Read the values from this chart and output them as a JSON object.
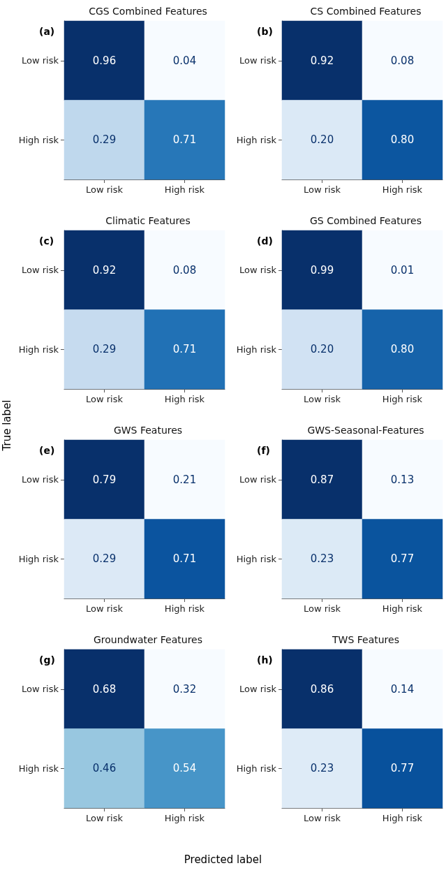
{
  "chart_data": [
    {
      "type": "heatmap",
      "title": "CGS Combined Features",
      "annotations": [
        "(a)"
      ],
      "categories": [
        "Low risk",
        "High risk"
      ],
      "y_categories": [
        "Low risk",
        "High risk"
      ],
      "cells": [
        [
          0.96,
          0.04
        ],
        [
          0.29,
          0.71
        ]
      ],
      "cell_labels": [
        [
          "0.96",
          "0.04"
        ],
        [
          "0.29",
          "0.71"
        ]
      ]
    },
    {
      "type": "heatmap",
      "title": "CS Combined Features",
      "annotations": [
        "(b)"
      ],
      "categories": [
        "Low risk",
        "High risk"
      ],
      "y_categories": [
        "Low risk",
        "High risk"
      ],
      "cells": [
        [
          0.92,
          0.08
        ],
        [
          0.2,
          0.8
        ]
      ],
      "cell_labels": [
        [
          "0.92",
          "0.08"
        ],
        [
          "0.20",
          "0.80"
        ]
      ]
    },
    {
      "type": "heatmap",
      "title": "Climatic Features",
      "annotations": [
        "(c)"
      ],
      "categories": [
        "Low risk",
        "High risk"
      ],
      "y_categories": [
        "Low risk",
        "High risk"
      ],
      "cells": [
        [
          0.92,
          0.08
        ],
        [
          0.29,
          0.71
        ]
      ],
      "cell_labels": [
        [
          "0.92",
          "0.08"
        ],
        [
          "0.29",
          "0.71"
        ]
      ]
    },
    {
      "type": "heatmap",
      "title": "GS Combined Features",
      "annotations": [
        "(d)"
      ],
      "categories": [
        "Low risk",
        "High risk"
      ],
      "y_categories": [
        "Low risk",
        "High risk"
      ],
      "cells": [
        [
          0.99,
          0.01
        ],
        [
          0.2,
          0.8
        ]
      ],
      "cell_labels": [
        [
          "0.99",
          "0.01"
        ],
        [
          "0.20",
          "0.80"
        ]
      ]
    },
    {
      "type": "heatmap",
      "title": "GWS Features",
      "annotations": [
        "(e)"
      ],
      "ylabel": "True label",
      "categories": [
        "Low risk",
        "High risk"
      ],
      "y_categories": [
        "Low risk",
        "High risk"
      ],
      "cells": [
        [
          0.79,
          0.21
        ],
        [
          0.29,
          0.71
        ]
      ],
      "cell_labels": [
        [
          "0.79",
          "0.21"
        ],
        [
          "0.29",
          "0.71"
        ]
      ]
    },
    {
      "type": "heatmap",
      "title": "GWS-Seasonal-Features",
      "annotations": [
        "(f)"
      ],
      "categories": [
        "Low risk",
        "High risk"
      ],
      "y_categories": [
        "Low risk",
        "High risk"
      ],
      "cells": [
        [
          0.87,
          0.13
        ],
        [
          0.23,
          0.77
        ]
      ],
      "cell_labels": [
        [
          "0.87",
          "0.13"
        ],
        [
          "0.23",
          "0.77"
        ]
      ]
    },
    {
      "type": "heatmap",
      "title": "Groundwater Features",
      "annotations": [
        "(g)"
      ],
      "xlabel": "Predicted label",
      "categories": [
        "Low risk",
        "High risk"
      ],
      "y_categories": [
        "Low risk",
        "High risk"
      ],
      "cells": [
        [
          0.68,
          0.32
        ],
        [
          0.46,
          0.54
        ]
      ],
      "cell_labels": [
        [
          "0.68",
          "0.32"
        ],
        [
          "0.46",
          "0.54"
        ]
      ]
    },
    {
      "type": "heatmap",
      "title": "TWS Features",
      "annotations": [
        "(h)"
      ],
      "categories": [
        "Low risk",
        "High risk"
      ],
      "y_categories": [
        "Low risk",
        "High risk"
      ],
      "cells": [
        [
          0.86,
          0.14
        ],
        [
          0.23,
          0.77
        ]
      ],
      "cell_labels": [
        [
          "0.86",
          "0.14"
        ],
        [
          "0.23",
          "0.77"
        ]
      ]
    }
  ]
}
